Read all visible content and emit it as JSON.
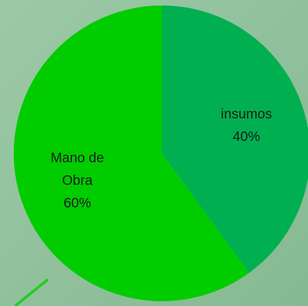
{
  "chart_data": {
    "type": "pie",
    "categories": [
      "insumos",
      "Mano de Obra"
    ],
    "values": [
      40,
      60
    ],
    "value_labels": [
      "40%",
      "60%"
    ],
    "colors": [
      "#00b050",
      "#00cc00"
    ],
    "start_angle": 0,
    "direction": "clockwise"
  }
}
